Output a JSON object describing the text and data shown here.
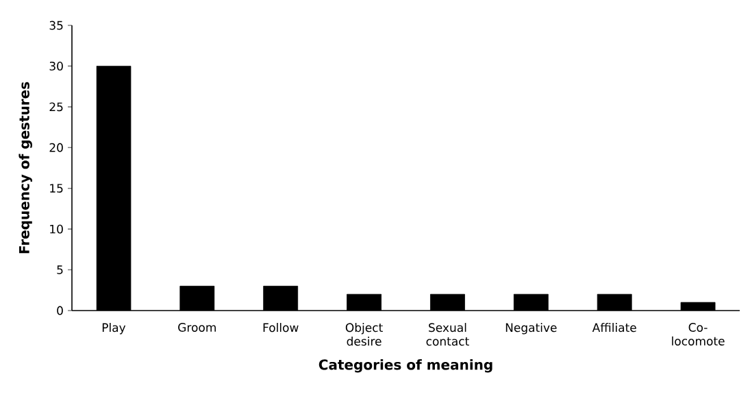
{
  "chart_data": {
    "type": "bar",
    "xlabel": "Categories of meaning",
    "ylabel": "Frequency of gestures",
    "categories": [
      "Play",
      "Groom",
      "Follow",
      "Object desire",
      "Sexual contact",
      "Negative",
      "Affiliate",
      "Co-locomote"
    ],
    "values": [
      30,
      3,
      3,
      2,
      2,
      2,
      2,
      1
    ],
    "color": "#000000",
    "ylim": [
      0,
      35
    ],
    "yticks": [
      0,
      5,
      10,
      15,
      20,
      25,
      30,
      35
    ],
    "grid": false
  }
}
